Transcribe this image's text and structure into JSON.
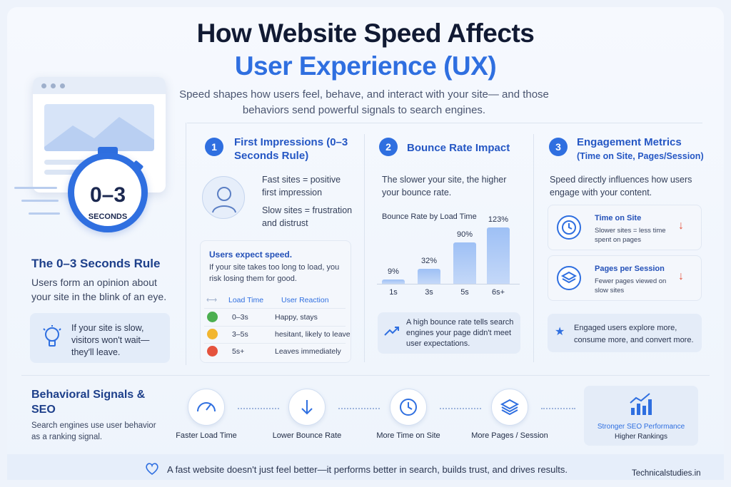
{
  "header": {
    "title_line1": "How Website Speed Affects",
    "title_line2": "User Experience (UX)",
    "subtitle": "Speed shapes how users feel, behave, and interact with your site— and those behaviors send powerful signals to search engines."
  },
  "stopwatch": {
    "big": "0–3",
    "small": "SECONDS"
  },
  "rule": {
    "title": "The 0–3 Seconds Rule",
    "text": "Users form an opinion about your site in the blink of an eye.",
    "tip": "If your site is slow, visitors won't wait— they'll leave."
  },
  "col1": {
    "num": "1",
    "title": "First Impressions (0–3 Seconds Rule)",
    "fast": "Fast sites = positive first impression",
    "slow": "Slow sites = frustration and distrust",
    "panel_title": "Users expect speed.",
    "panel_text": "If your site takes too long to load, you risk losing them for good.",
    "table": {
      "headers": [
        "Load Time",
        "User Reaction"
      ],
      "rows": [
        {
          "time": "0–3s",
          "reaction": "Happy, stays",
          "color": "#4caf50"
        },
        {
          "time": "3–5s",
          "reaction": "hesitant, likely to leave",
          "color": "#f2b630"
        },
        {
          "time": "5s+",
          "reaction": "Leaves immediately",
          "color": "#e5533d"
        }
      ]
    }
  },
  "col2": {
    "num": "2",
    "title": "Bounce Rate Impact",
    "text": "The slower your site, the higher your bounce rate.",
    "note": "A high bounce rate tells search engines your page didn't meet user expectations."
  },
  "chart_data": {
    "type": "bar",
    "title": "Bounce Rate by Load Time",
    "categories": [
      "1s",
      "3s",
      "5s",
      "6s+"
    ],
    "values": [
      9,
      32,
      90,
      123
    ],
    "value_labels": [
      "9%",
      "32%",
      "90%",
      "123%"
    ],
    "ylim": [
      0,
      130
    ]
  },
  "col3": {
    "num": "3",
    "title_line1": "Engagement Metrics",
    "title_line2": "(Time on Site, Pages/Session)",
    "text": "Speed directly influences how users engage with your content.",
    "metrics": [
      {
        "title": "Time on Site",
        "text": "Slower sites = less time spent on pages",
        "arrow": "↓"
      },
      {
        "title": "Pages per Session",
        "text": "Fewer pages viewed on slow sites",
        "arrow": "↓"
      }
    ],
    "note": "Engaged users explore more, consume more, and convert more."
  },
  "bottom": {
    "title": "Behavioral Signals & SEO",
    "text": "Search engines use user behavior as a ranking signal.",
    "steps": [
      "Faster Load Time",
      "Lower Bounce Rate",
      "More Time on Site",
      "More Pages / Session"
    ],
    "result_line1": "Stronger SEO Performance",
    "result_line2": "Higher Rankings"
  },
  "footer": {
    "text": "A fast website doesn't just feel better—it performs better in search, builds trust, and drives results.",
    "brand": "Technicalstudies.in"
  },
  "colors": {
    "accent": "#2f6fe0",
    "dark": "#111a33",
    "warn": "#e5533d"
  }
}
